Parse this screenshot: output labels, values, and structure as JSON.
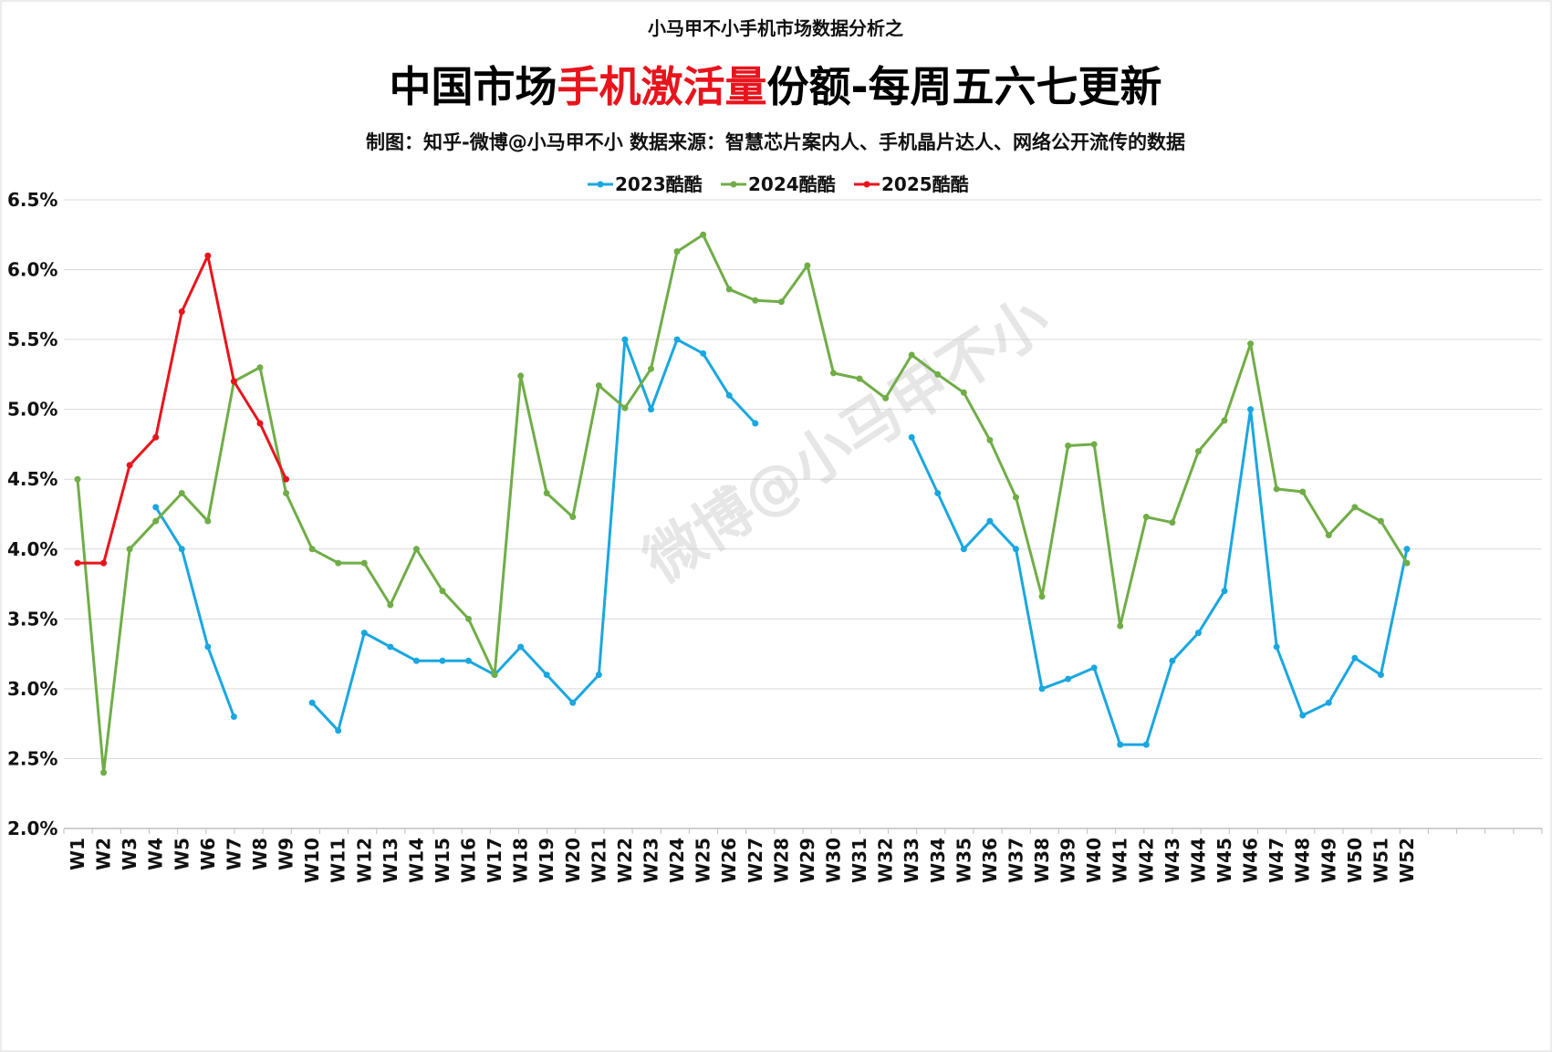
{
  "header": {
    "supertitle": "小马甲不小手机市场数据分析之",
    "title_parts": [
      {
        "text": "中国市场",
        "color": "#000000"
      },
      {
        "text": "手机激活量",
        "color": "#e8141c"
      },
      {
        "text": "份额-每周五六七更新",
        "color": "#000000"
      }
    ],
    "subtitle": "制图：知乎-微博@小马甲不小  数据来源：智慧芯片案内人、手机晶片达人、网络公开流传的数据"
  },
  "watermark": "微博@小马甲不小",
  "chart_data": {
    "type": "line",
    "title": "中国市场手机激活量份额-每周五六七更新",
    "xlabel": "",
    "ylabel": "",
    "ylim": [
      0.02,
      0.065
    ],
    "y_ticks": [
      "2.0%",
      "2.5%",
      "3.0%",
      "3.5%",
      "4.0%",
      "4.5%",
      "5.0%",
      "5.5%",
      "6.0%",
      "6.5%"
    ],
    "y_tick_values": [
      0.02,
      0.025,
      0.03,
      0.035,
      0.04,
      0.045,
      0.05,
      0.055,
      0.06,
      0.065
    ],
    "grid": true,
    "legend_position": "top-center",
    "categories": [
      "W1",
      "W2",
      "W3",
      "W4",
      "W5",
      "W6",
      "W7",
      "W8",
      "W9",
      "W10",
      "W11",
      "W12",
      "W13",
      "W14",
      "W15",
      "W16",
      "W17",
      "W18",
      "W19",
      "W20",
      "W21",
      "W22",
      "W23",
      "W24",
      "W25",
      "W26",
      "W27",
      "W28",
      "W29",
      "W30",
      "W31",
      "W32",
      "W33",
      "W34",
      "W35",
      "W36",
      "W37",
      "W38",
      "W39",
      "W40",
      "W41",
      "W42",
      "W43",
      "W44",
      "W45",
      "W46",
      "W47",
      "W48",
      "W49",
      "W50",
      "W51",
      "W52"
    ],
    "series": [
      {
        "name": "2023酷酷",
        "color": "#1aa7e0",
        "values": [
          null,
          null,
          null,
          0.043,
          0.04,
          0.033,
          0.028,
          null,
          null,
          0.029,
          0.027,
          0.034,
          0.033,
          0.032,
          0.032,
          0.032,
          0.031,
          0.033,
          0.031,
          0.029,
          0.031,
          0.055,
          0.05,
          0.055,
          0.054,
          0.051,
          0.049,
          null,
          null,
          null,
          null,
          null,
          0.048,
          0.044,
          0.04,
          0.042,
          0.04,
          0.03,
          0.0307,
          0.0315,
          0.026,
          0.026,
          0.032,
          0.034,
          0.037,
          0.05,
          0.033,
          0.0281,
          0.029,
          0.0322,
          0.031,
          0.04
        ]
      },
      {
        "name": "2024酷酷",
        "color": "#70ad47",
        "values": [
          0.045,
          0.024,
          0.04,
          0.042,
          0.044,
          0.042,
          0.052,
          0.053,
          0.044,
          0.04,
          0.039,
          0.039,
          0.036,
          0.04,
          0.037,
          0.035,
          0.031,
          0.0524,
          0.044,
          0.0423,
          0.0517,
          0.0501,
          0.0529,
          0.0613,
          0.0625,
          0.0586,
          0.0578,
          0.0577,
          0.0603,
          0.0526,
          0.0522,
          0.0508,
          0.0539,
          0.0525,
          0.0512,
          0.0478,
          0.0437,
          0.0366,
          0.0474,
          0.0475,
          0.0345,
          0.0423,
          0.0419,
          0.047,
          0.0492,
          0.0547,
          0.0443,
          0.0441,
          0.041,
          0.043,
          0.042,
          0.039
        ]
      },
      {
        "name": "2025酷酷",
        "color": "#e8141c",
        "values": [
          0.039,
          0.039,
          0.046,
          0.048,
          0.057,
          0.061,
          0.052,
          0.049,
          0.045,
          null,
          null,
          null,
          null,
          null,
          null,
          null,
          null,
          null,
          null,
          null,
          null,
          null,
          null,
          null,
          null,
          null,
          null,
          null,
          null,
          null,
          null,
          null,
          null,
          null,
          null,
          null,
          null,
          null,
          null,
          null,
          null,
          null,
          null,
          null,
          null,
          null,
          null,
          null,
          null,
          null,
          null,
          null
        ]
      }
    ]
  }
}
